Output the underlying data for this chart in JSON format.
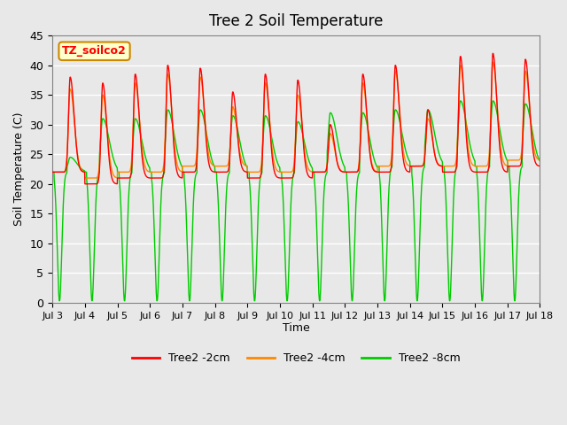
{
  "title": "Tree 2 Soil Temperature",
  "ylabel": "Soil Temperature (C)",
  "xlabel": "Time",
  "annotation_text": "TZ_soilco2",
  "x_tick_labels": [
    "Jul 3",
    "Jul 4",
    "Jul 5",
    "Jul 6",
    "Jul 7",
    "Jul 8",
    "Jul 9",
    "Jul 10",
    "Jul 11",
    "Jul 12",
    "Jul 13",
    "Jul 14",
    "Jul 15",
    "Jul 16",
    "Jul 17",
    "Jul 18"
  ],
  "ylim": [
    0,
    45
  ],
  "yticks": [
    0,
    5,
    10,
    15,
    20,
    25,
    30,
    35,
    40,
    45
  ],
  "colors": {
    "2cm": "#FF0000",
    "4cm": "#FF8800",
    "8cm": "#00CC00"
  },
  "line_width": 1.0,
  "legend_labels": [
    "Tree2 -2cm",
    "Tree2 -4cm",
    "Tree2 -8cm"
  ],
  "bg_color": "#E8E8E8",
  "plot_bg_color": "#E8E8E8",
  "grid_color": "white",
  "n_days": 15,
  "points_per_day": 144,
  "day_peaks_2cm": [
    38,
    37,
    38.5,
    40,
    39.5,
    35.5,
    38.5,
    37.5,
    30,
    38.5,
    40,
    32.5,
    41.5,
    42,
    41
  ],
  "day_peaks_4cm": [
    36,
    35,
    37,
    38.5,
    38,
    33,
    37,
    35,
    28.5,
    37,
    39,
    31,
    40,
    40.5,
    39
  ],
  "day_peaks_8cm": [
    24.5,
    31,
    31,
    32.5,
    32.5,
    31.5,
    31.5,
    30.5,
    32,
    32,
    32.5,
    32.5,
    34,
    34,
    33.5
  ],
  "night_min_2cm": [
    22,
    20,
    21,
    21,
    22,
    22,
    21,
    21,
    22,
    22,
    22,
    23,
    22,
    22,
    23
  ],
  "night_min_4cm": [
    22,
    21,
    22,
    22,
    23,
    23,
    22,
    22,
    22,
    22,
    23,
    23,
    23,
    23,
    24
  ],
  "night_min_8cm": [
    22,
    22,
    22,
    22,
    22,
    22,
    22,
    22,
    22,
    22,
    23,
    23,
    23,
    23,
    23
  ]
}
